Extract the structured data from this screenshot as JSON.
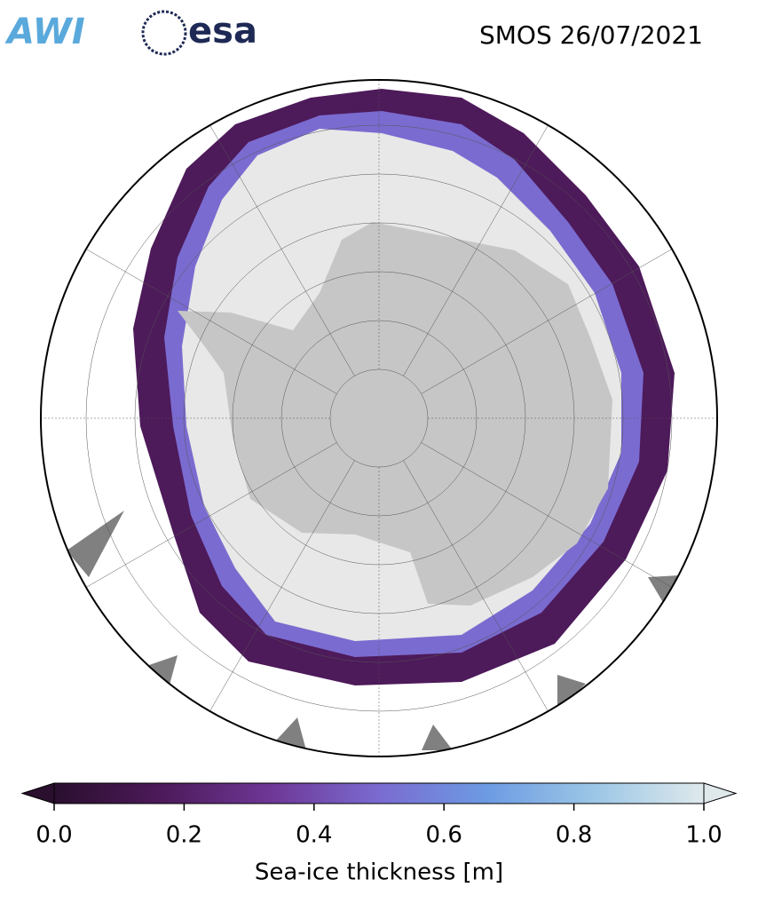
{
  "header": {
    "logos": [
      "AWI",
      "esa"
    ],
    "title": "SMOS 26/07/2021"
  },
  "colorbar": {
    "label": "Sea-ice thickness [m]",
    "lim": [
      0,
      1
    ],
    "ticks": [
      {
        "value": 0,
        "label": "0.0"
      },
      0.2,
      0.4,
      0.6,
      0.8,
      {
        "value": 1,
        "label": "1.0"
      }
    ],
    "colors": [
      "#2a0f2e",
      "#4d1a5a",
      "#6e3796",
      "#7a6bd0",
      "#6d9be3",
      "#9cc7e6",
      "#dfe9ec"
    ]
  }
}
